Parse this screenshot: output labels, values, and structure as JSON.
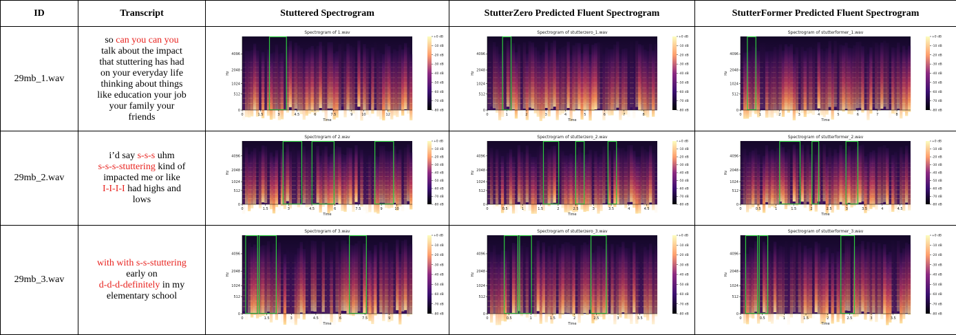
{
  "table": {
    "header": [
      "ID",
      "Transcript",
      "Stuttered Spectrogram",
      "StutterZero Predicted Fluent Spectrogram",
      "StutterFormer Predicted Fluent Spectrogram"
    ],
    "rows": [
      {
        "id": "29mb_1.wav",
        "transcript": [
          [
            {
              "text": "so ",
              "color": "#000000"
            },
            {
              "text": "can you can you",
              "color": "#e8231f"
            }
          ],
          [
            {
              "text": "talk about the impact",
              "color": "#000000"
            }
          ],
          [
            {
              "text": "that stuttering has had",
              "color": "#000000"
            }
          ],
          [
            {
              "text": "on your everyday life",
              "color": "#000000"
            }
          ],
          [
            {
              "text": "thinking about things",
              "color": "#000000"
            }
          ],
          [
            {
              "text": "like education your job",
              "color": "#000000"
            }
          ],
          [
            {
              "text": "your family your",
              "color": "#000000"
            }
          ],
          [
            {
              "text": "friends",
              "color": "#000000"
            }
          ]
        ],
        "spectrograms": [
          {
            "title": "Spectrogram of 1.wav",
            "xlim": [
              0,
              14
            ],
            "xticks": [
              0,
              1.5,
              3,
              4.5,
              6,
              7.5,
              9,
              10,
              12
            ]
          },
          {
            "title": "Spectrogram of stutterzero_1.wav",
            "xlim": [
              0,
              8.7
            ],
            "xticks": [
              0,
              1,
              2,
              3,
              4,
              5,
              6,
              7,
              8
            ]
          },
          {
            "title": "Spectrogram of stutterformer_1.wav",
            "xlim": [
              0,
              8.7
            ],
            "xticks": [
              0,
              1,
              2,
              3,
              4,
              5,
              6,
              7,
              8
            ]
          }
        ]
      },
      {
        "id": "29mb_2.wav",
        "transcript": [
          [
            {
              "text": "i’d say ",
              "color": "#000000"
            },
            {
              "text": "s-s-s",
              "color": "#e8231f"
            },
            {
              "text": " uhm",
              "color": "#000000"
            }
          ],
          [
            {
              "text": "s-s-s-stuttering",
              "color": "#e8231f"
            },
            {
              "text": " kind of",
              "color": "#000000"
            }
          ],
          [
            {
              "text": "impacted me or like",
              "color": "#000000"
            }
          ],
          [
            {
              "text": "I-I-I-I",
              "color": "#e8231f"
            },
            {
              "text": " had highs and",
              "color": "#000000"
            }
          ],
          [
            {
              "text": "lows",
              "color": "#000000"
            }
          ]
        ],
        "spectrograms": [
          {
            "title": "Spectrogram of 2.wav",
            "xlim": [
              0,
              11
            ],
            "xticks": [
              0,
              1.5,
              3,
              4.5,
              6,
              7.5,
              9,
              10
            ]
          },
          {
            "title": "Spectrogram of stutterzero_2.wav",
            "xlim": [
              0,
              4.8
            ],
            "xticks": [
              0,
              0.5,
              1,
              1.5,
              2,
              2.5,
              3,
              3.5,
              4,
              4.5
            ]
          },
          {
            "title": "Spectrogram of stutterformer_2.wav",
            "xlim": [
              0,
              4.8
            ],
            "xticks": [
              0,
              0.5,
              1,
              1.5,
              2,
              2.5,
              3,
              3.5,
              4,
              4.5
            ]
          }
        ]
      },
      {
        "id": "29mb_3.wav",
        "transcript": [
          [
            {
              "text": "with with s-s-stuttering",
              "color": "#e8231f"
            }
          ],
          [
            {
              "text": "early on",
              "color": "#000000"
            }
          ],
          [
            {
              "text": "d-d-d-definitely",
              "color": "#e8231f"
            },
            {
              "text": " in my",
              "color": "#000000"
            }
          ],
          [
            {
              "text": "elementary school",
              "color": "#000000"
            }
          ]
        ],
        "spectrograms": [
          {
            "title": "Spectrogram of 3.wav",
            "xlim": [
              0,
              10.4
            ],
            "xticks": [
              0,
              1.5,
              3,
              4.5,
              6,
              7.5,
              9
            ]
          },
          {
            "title": "Spectrogram of stutterzero_3.wav",
            "xlim": [
              0,
              3.9
            ],
            "xticks": [
              0,
              0.5,
              1,
              1.5,
              2,
              2.5,
              3,
              3.5
            ]
          },
          {
            "title": "Spectrogram of stutterformer_3.wav",
            "xlim": [
              0,
              3.9
            ],
            "xticks": [
              0,
              0.5,
              1,
              1.5,
              2,
              2.5,
              3,
              3.5
            ]
          }
        ]
      }
    ]
  },
  "spectrogram_axes": {
    "xlabel": "Time",
    "ylabel": "Hz",
    "ylim": [
      0,
      8000
    ],
    "yscale": "mel",
    "yticks": [
      0,
      512,
      1024,
      2048,
      4096
    ],
    "colorbar_lim": [
      -80,
      0
    ],
    "colorbar_ticks": [
      {
        "value": 0,
        "label": "+0 dB"
      },
      {
        "value": -10,
        "label": "-10 dB"
      },
      {
        "value": -20,
        "label": "-20 dB"
      },
      {
        "value": -30,
        "label": "-30 dB"
      },
      {
        "value": -40,
        "label": "-40 dB"
      },
      {
        "value": -50,
        "label": "-50 dB"
      },
      {
        "value": -60,
        "label": "-60 dB"
      },
      {
        "value": -70,
        "label": "-70 dB"
      },
      {
        "value": -80,
        "label": "-80 dB"
      }
    ]
  }
}
